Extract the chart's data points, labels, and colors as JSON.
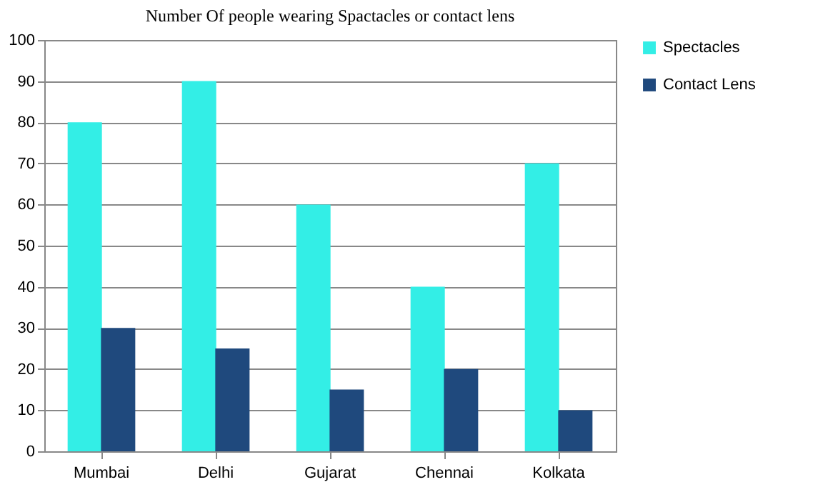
{
  "chart_data": {
    "type": "bar",
    "title": "Number Of people wearing Spactacles or contact lens",
    "categories": [
      "Mumbai",
      "Delhi",
      "Gujarat",
      "Chennai",
      "Kolkata"
    ],
    "series": [
      {
        "name": "Spectacles",
        "color": "#33eee6",
        "values": [
          80,
          90,
          60,
          40,
          70
        ]
      },
      {
        "name": "Contact Lens",
        "color": "#1f497d",
        "values": [
          30,
          25,
          15,
          20,
          10
        ]
      }
    ],
    "ylim": [
      0,
      100
    ],
    "yticks": [
      0,
      10,
      20,
      30,
      40,
      50,
      60,
      70,
      80,
      90,
      100
    ],
    "grid": "y",
    "legend": "right"
  }
}
